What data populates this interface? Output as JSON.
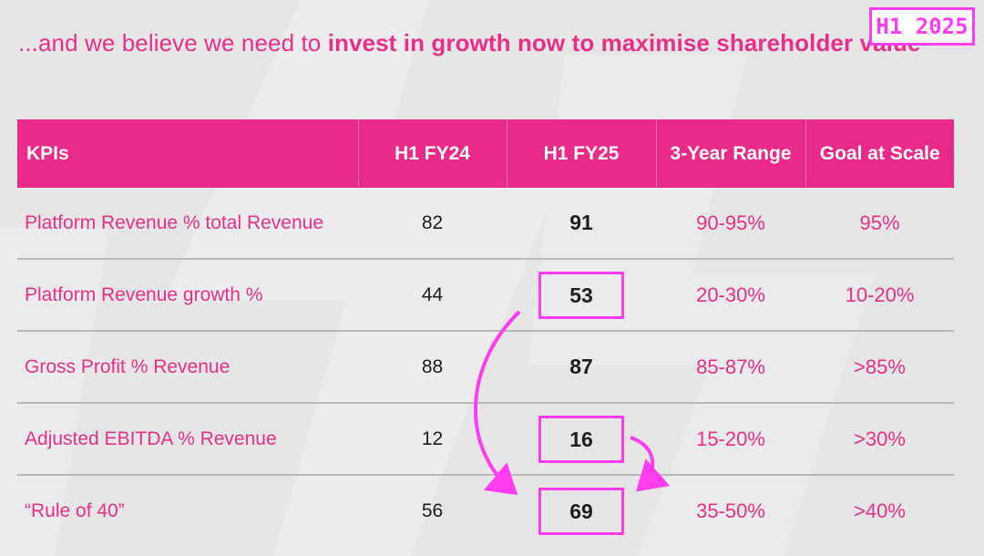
{
  "headline": {
    "prefix": "...and we believe we need to ",
    "emphasis": "invest in growth now to maximise shareholder value"
  },
  "badge": "H1 2025",
  "table": {
    "headers": [
      "KPIs",
      "H1 FY24",
      "H1 FY25",
      "3-Year Range",
      "Goal at Scale"
    ],
    "rows": [
      {
        "kpi": "Platform Revenue % total Revenue",
        "h1fy24": "82",
        "h1fy25": "91",
        "range": "90-95%",
        "goal": "95%",
        "highlighted": false
      },
      {
        "kpi": "Platform Revenue growth %",
        "h1fy24": "44",
        "h1fy25": "53",
        "range": "20-30%",
        "goal": "10-20%",
        "highlighted": true
      },
      {
        "kpi": "Gross Profit % Revenue",
        "h1fy24": "88",
        "h1fy25": "87",
        "range": "85-87%",
        "goal": ">85%",
        "highlighted": false
      },
      {
        "kpi": "Adjusted EBITDA % Revenue",
        "h1fy24": "12",
        "h1fy25": "16",
        "range": "15-20%",
        "goal": ">30%",
        "highlighted": true
      },
      {
        "kpi": "“Rule of 40”",
        "h1fy24": "56",
        "h1fy25": "69",
        "range": "35-50%",
        "goal": ">40%",
        "highlighted": true
      }
    ]
  },
  "colors": {
    "brand_pink": "#ea2a88",
    "annotation_magenta": "#ff3cf2",
    "background": "#e6e6e7",
    "body_text": "#1e1e1e"
  }
}
